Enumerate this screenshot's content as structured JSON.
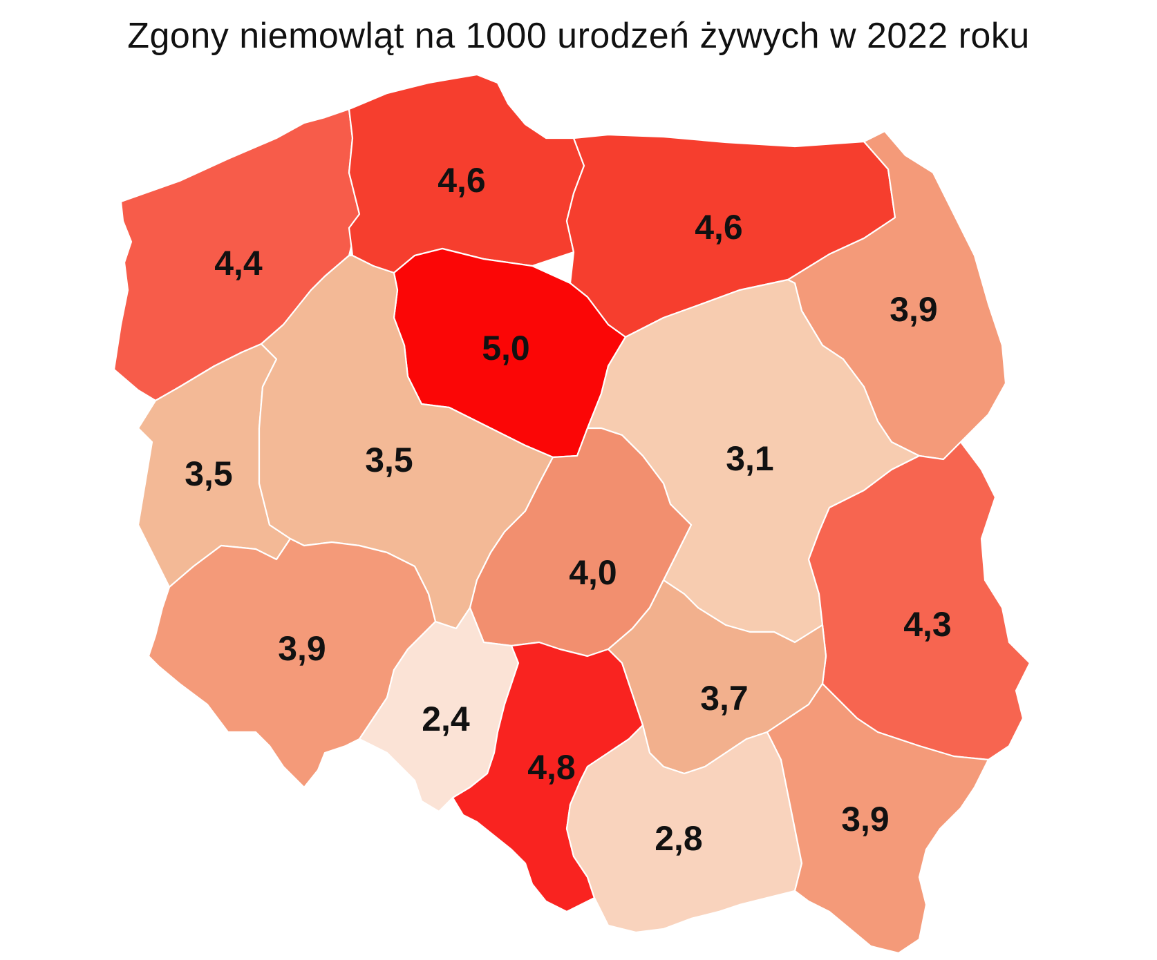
{
  "title": "Zgony niemowląt na 1000 urodzeń żywych w 2022 roku",
  "regions": [
    {
      "id": "zachodniopomorskie",
      "label": "4,4",
      "value": 4.4,
      "color": "#f75c4a"
    },
    {
      "id": "pomorskie",
      "label": "4,6",
      "value": 4.6,
      "color": "#f63e2e"
    },
    {
      "id": "warminsko-mazurskie",
      "label": "4,6",
      "value": 4.6,
      "color": "#f63e2e"
    },
    {
      "id": "podlaskie",
      "label": "3,9",
      "value": 3.9,
      "color": "#f49a79"
    },
    {
      "id": "kujawsko-pomorskie",
      "label": "5,0",
      "value": 5.0,
      "color": "#fb0606"
    },
    {
      "id": "lubuskie",
      "label": "3,5",
      "value": 3.5,
      "color": "#f3b996"
    },
    {
      "id": "wielkopolskie",
      "label": "3,5",
      "value": 3.5,
      "color": "#f3b996"
    },
    {
      "id": "mazowieckie",
      "label": "3,1",
      "value": 3.1,
      "color": "#f7ccb0"
    },
    {
      "id": "lodzkie",
      "label": "4,0",
      "value": 4.0,
      "color": "#f28f6f"
    },
    {
      "id": "lubelskie",
      "label": "4,3",
      "value": 4.3,
      "color": "#f76550"
    },
    {
      "id": "dolnoslaskie",
      "label": "3,9",
      "value": 3.9,
      "color": "#f49a79"
    },
    {
      "id": "opolskie",
      "label": "2,4",
      "value": 2.4,
      "color": "#fbe3d6"
    },
    {
      "id": "slaskie",
      "label": "4,8",
      "value": 4.8,
      "color": "#f92320"
    },
    {
      "id": "swietokrzyskie",
      "label": "3,7",
      "value": 3.7,
      "color": "#f2b08d"
    },
    {
      "id": "malopolskie",
      "label": "2,8",
      "value": 2.8,
      "color": "#f9d3bd"
    },
    {
      "id": "podkarpackie",
      "label": "3,9",
      "value": 3.9,
      "color": "#f49a79"
    }
  ]
}
